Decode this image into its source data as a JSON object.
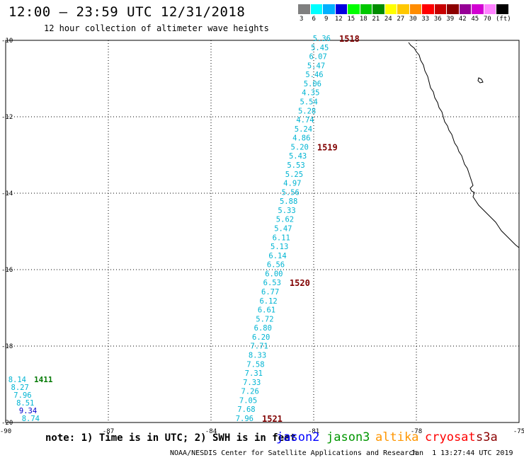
{
  "title": "12:00 – 23:59 UTC 12/31/2018",
  "subtitle": "12 hour collection of altimeter wave heights",
  "legend": {
    "unit": "(ft)",
    "bins": [
      {
        "label": "3",
        "color": "#7f7f7f"
      },
      {
        "label": "6",
        "color": "#00ffff"
      },
      {
        "label": "9",
        "color": "#00b0ff"
      },
      {
        "label": "12",
        "color": "#0000e0"
      },
      {
        "label": "15",
        "color": "#00ff00"
      },
      {
        "label": "18",
        "color": "#00c800"
      },
      {
        "label": "21",
        "color": "#008c00"
      },
      {
        "label": "24",
        "color": "#ffff00"
      },
      {
        "label": "27",
        "color": "#ffc800"
      },
      {
        "label": "30",
        "color": "#ff8c00"
      },
      {
        "label": "33",
        "color": "#ff0000"
      },
      {
        "label": "36",
        "color": "#c80000"
      },
      {
        "label": "39",
        "color": "#8c0000"
      },
      {
        "label": "42",
        "color": "#960096"
      },
      {
        "label": "45",
        "color": "#d200d2"
      },
      {
        "label": "70",
        "color": "#ff82ff"
      },
      {
        "label": "",
        "color": "#000000"
      }
    ]
  },
  "map": {
    "lon_range": [
      -90,
      -75
    ],
    "lat_range": [
      -20,
      -10
    ],
    "x_tick_labels": [
      "-90",
      "-87",
      "-84",
      "-81",
      "-78",
      "-75"
    ],
    "y_tick_labels": [
      "-10",
      "-12",
      "-14",
      "-16",
      "-18",
      "-20"
    ],
    "grid": true
  },
  "colors": {
    "cyan_text": "#00b4d2",
    "blue_text": "#0000cc",
    "green_text": "#007800",
    "time_label": "#800000"
  },
  "track_main": {
    "values": [
      "5.36",
      "5.45",
      "6.07",
      "5.47",
      "5.46",
      "5.06",
      "4.35",
      "5.54",
      "5.28",
      "4.74",
      "5.24",
      "4.86",
      "5.20",
      "5.43",
      "5.53",
      "5.25",
      "4.97",
      "5.56",
      "5.88",
      "5.33",
      "5.62",
      "5.47",
      "6.11",
      "5.13",
      "6.14",
      "6.56",
      "6.00",
      "6.53",
      "6.77",
      "6.12",
      "6.61",
      "5.72",
      "6.80",
      "6.20",
      "7.71",
      "8.33",
      "7.58",
      "7.31",
      "7.33",
      "7.26",
      "7.05",
      "7.68",
      "7.96"
    ],
    "time_labels": [
      {
        "text": "1518",
        "index": 0
      },
      {
        "text": "1519",
        "index": 12
      },
      {
        "text": "1520",
        "index": 27
      },
      {
        "text": "1521",
        "index": 42
      }
    ]
  },
  "track_west": {
    "points": [
      {
        "value": "8.14",
        "color": "#00b4d2"
      },
      {
        "value": "8.27",
        "color": "#00b4d2"
      },
      {
        "value": "7.96",
        "color": "#00b4d2"
      },
      {
        "value": "8.51",
        "color": "#00b4d2"
      },
      {
        "value": "9.34",
        "color": "#0000cc"
      },
      {
        "value": "8.74",
        "color": "#00b4d2"
      }
    ],
    "time_label": "1411"
  },
  "footer": {
    "note": "note: 1) Time is in UTC; 2) SWH is in feet",
    "satellites": [
      {
        "name": "jason2",
        "color": "#0000ff"
      },
      {
        "name": "jason3",
        "color": "#009600"
      },
      {
        "name": "altika",
        "color": "#ff9600"
      },
      {
        "name": "cryosat",
        "color": "#ff0000"
      },
      {
        "name": "s3a",
        "color": "#8c0000"
      }
    ],
    "credit": "NOAA/NESDIS Center for Satellite Applications and Research",
    "timestamp": "Jan  1 13:27:44 UTC 2019"
  }
}
